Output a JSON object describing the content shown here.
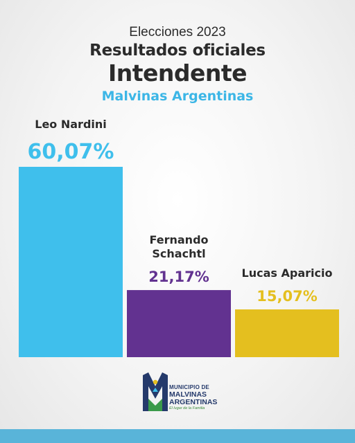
{
  "header": {
    "eyebrow": "Elecciones 2023",
    "title_line1": "Resultados oficiales",
    "title_line2": "Intendente",
    "subtitle": "Malvinas Argentinas"
  },
  "chart_data": {
    "type": "bar",
    "categories": [
      "Leo Nardini",
      "Fernando Schachtl",
      "Lucas Aparicio"
    ],
    "category_lines": [
      [
        "Leo Nardini"
      ],
      [
        "Fernando",
        "Schachtl"
      ],
      [
        "Lucas Aparicio"
      ]
    ],
    "values": [
      60.07,
      21.17,
      15.07
    ],
    "value_labels": [
      "60,07%",
      "21,17%",
      "15,07%"
    ],
    "colors": [
      "#3fbfec",
      "#623290",
      "#e4bf1f"
    ],
    "ylim": [
      0,
      60.07
    ]
  },
  "logo": {
    "line1": "MUNICIPIO DE",
    "line2": "MALVINAS",
    "line3": "ARGENTINAS",
    "tagline": "El lugar de la Familia"
  },
  "colors": {
    "accent": "#3cb6e6",
    "text": "#2b2b2b",
    "footer": "#59b4d9",
    "logo_navy": "#253a6b"
  }
}
